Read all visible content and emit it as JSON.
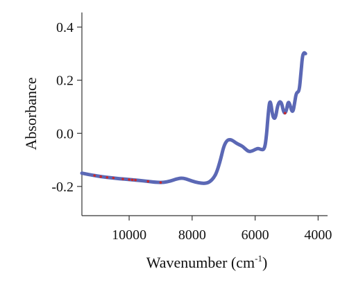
{
  "chart_data": {
    "type": "line",
    "title": "",
    "xlabel": "Wavenumber (cm",
    "xlabel_sup": "-1",
    "xlabel_close": ")",
    "ylabel": "Absorbance",
    "x_reversed": true,
    "xlim": [
      11500,
      3700
    ],
    "ylim": [
      -0.31,
      0.455
    ],
    "x_ticks": [
      {
        "value": 10000,
        "label": "10000"
      },
      {
        "value": 8000,
        "label": "8000"
      },
      {
        "value": 6000,
        "label": "6000"
      },
      {
        "value": 4000,
        "label": "4000"
      }
    ],
    "y_ticks": [
      {
        "value": 0.4,
        "label": "0.4"
      },
      {
        "value": 0.2,
        "label": "0.2"
      },
      {
        "value": 0.0,
        "label": "0.0"
      },
      {
        "value": -0.2,
        "label": "-0.2"
      }
    ],
    "grid": false,
    "series": [
      {
        "color": "#5b68b5",
        "marker_color": "#cc2a2a",
        "points": [
          [
            11500,
            -0.15
          ],
          [
            11200,
            -0.157
          ],
          [
            10900,
            -0.163
          ],
          [
            10600,
            -0.167
          ],
          [
            10300,
            -0.171
          ],
          [
            10000,
            -0.174
          ],
          [
            9700,
            -0.177
          ],
          [
            9400,
            -0.181
          ],
          [
            9100,
            -0.185
          ],
          [
            8900,
            -0.185
          ],
          [
            8700,
            -0.18
          ],
          [
            8500,
            -0.172
          ],
          [
            8350,
            -0.168
          ],
          [
            8200,
            -0.171
          ],
          [
            8000,
            -0.18
          ],
          [
            7800,
            -0.186
          ],
          [
            7600,
            -0.189
          ],
          [
            7450,
            -0.184
          ],
          [
            7300,
            -0.166
          ],
          [
            7200,
            -0.14
          ],
          [
            7100,
            -0.1
          ],
          [
            7000,
            -0.05
          ],
          [
            6900,
            -0.027
          ],
          [
            6800,
            -0.023
          ],
          [
            6700,
            -0.028
          ],
          [
            6600,
            -0.037
          ],
          [
            6500,
            -0.043
          ],
          [
            6400,
            -0.049
          ],
          [
            6300,
            -0.06
          ],
          [
            6200,
            -0.069
          ],
          [
            6100,
            -0.067
          ],
          [
            6000,
            -0.061
          ],
          [
            5900,
            -0.056
          ],
          [
            5800,
            -0.062
          ],
          [
            5700,
            -0.06
          ],
          [
            5640,
            -0.01
          ],
          [
            5580,
            0.08
          ],
          [
            5540,
            0.12
          ],
          [
            5500,
            0.115
          ],
          [
            5450,
            0.07
          ],
          [
            5400,
            0.055
          ],
          [
            5350,
            0.06
          ],
          [
            5300,
            0.096
          ],
          [
            5250,
            0.115
          ],
          [
            5200,
            0.12
          ],
          [
            5150,
            0.11
          ],
          [
            5100,
            0.082
          ],
          [
            5050,
            0.075
          ],
          [
            5000,
            0.09
          ],
          [
            4950,
            0.12
          ],
          [
            4900,
            0.11
          ],
          [
            4850,
            0.088
          ],
          [
            4800,
            0.08
          ],
          [
            4750,
            0.11
          ],
          [
            4700,
            0.15
          ],
          [
            4650,
            0.155
          ],
          [
            4600,
            0.16
          ],
          [
            4550,
            0.22
          ],
          [
            4500,
            0.29
          ],
          [
            4450,
            0.305
          ],
          [
            4400,
            0.3
          ]
        ],
        "markers": [
          [
            11100,
            -0.159
          ],
          [
            10900,
            -0.163
          ],
          [
            10700,
            -0.166
          ],
          [
            10500,
            -0.168
          ],
          [
            10200,
            -0.172
          ],
          [
            10000,
            -0.174
          ],
          [
            9900,
            -0.175
          ],
          [
            9800,
            -0.176
          ],
          [
            9400,
            -0.181
          ],
          [
            9000,
            -0.185
          ],
          [
            5050,
            0.076
          ]
        ]
      }
    ]
  }
}
